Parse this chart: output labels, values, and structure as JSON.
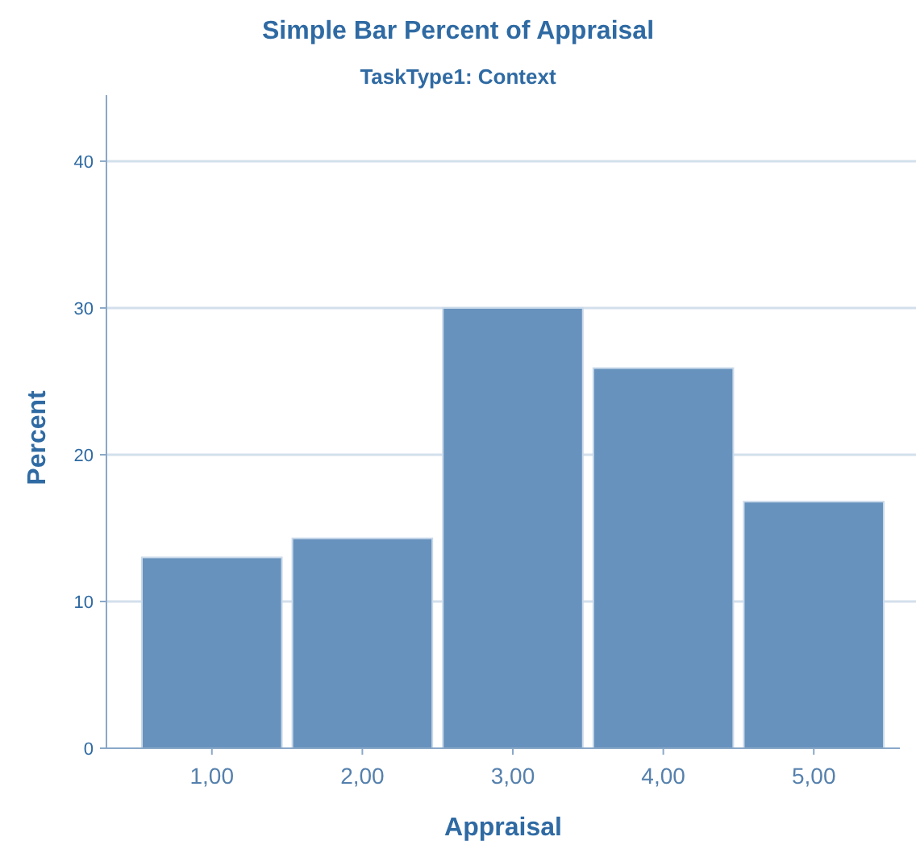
{
  "chart_data": {
    "type": "bar",
    "title": "Simple Bar Percent of Appraisal",
    "subtitle": "TaskType1: Context",
    "xlabel": "Appraisal",
    "ylabel": "Percent",
    "categories": [
      "1,00",
      "2,00",
      "3,00",
      "4,00",
      "5,00"
    ],
    "values": [
      13.0,
      14.3,
      30.0,
      25.9,
      16.8
    ],
    "color": "#6792bd",
    "ylim": [
      0,
      44.5
    ],
    "yticks": [
      0,
      10,
      20,
      30,
      40
    ],
    "grid": "y"
  }
}
